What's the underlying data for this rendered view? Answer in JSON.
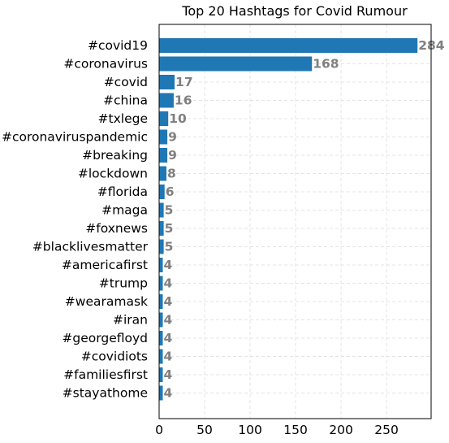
{
  "chart_data": {
    "type": "bar",
    "orientation": "horizontal",
    "title": "Top 20 Hashtags for Covid Rumour",
    "xlabel": "",
    "ylabel": "",
    "xlim": [
      0,
      299
    ],
    "x_ticks": [
      0,
      50,
      100,
      150,
      200,
      250
    ],
    "grid": true,
    "categories": [
      "#covid19",
      "#coronavirus",
      "#covid",
      "#china",
      "#txlege",
      "#coronaviruspandemic",
      "#breaking",
      "#lockdown",
      "#florida",
      "#maga",
      "#foxnews",
      "#blacklivesmatter",
      "#americafirst",
      "#trump",
      "#wearamask",
      "#iran",
      "#georgefloyd",
      "#covidiots",
      "#familiesfirst",
      "#stayathome"
    ],
    "values": [
      284,
      168,
      17,
      16,
      10,
      9,
      9,
      8,
      6,
      5,
      5,
      5,
      4,
      4,
      4,
      4,
      4,
      4,
      4,
      4
    ],
    "bar_color": "#1f77b4",
    "value_label_color": "#808080"
  }
}
